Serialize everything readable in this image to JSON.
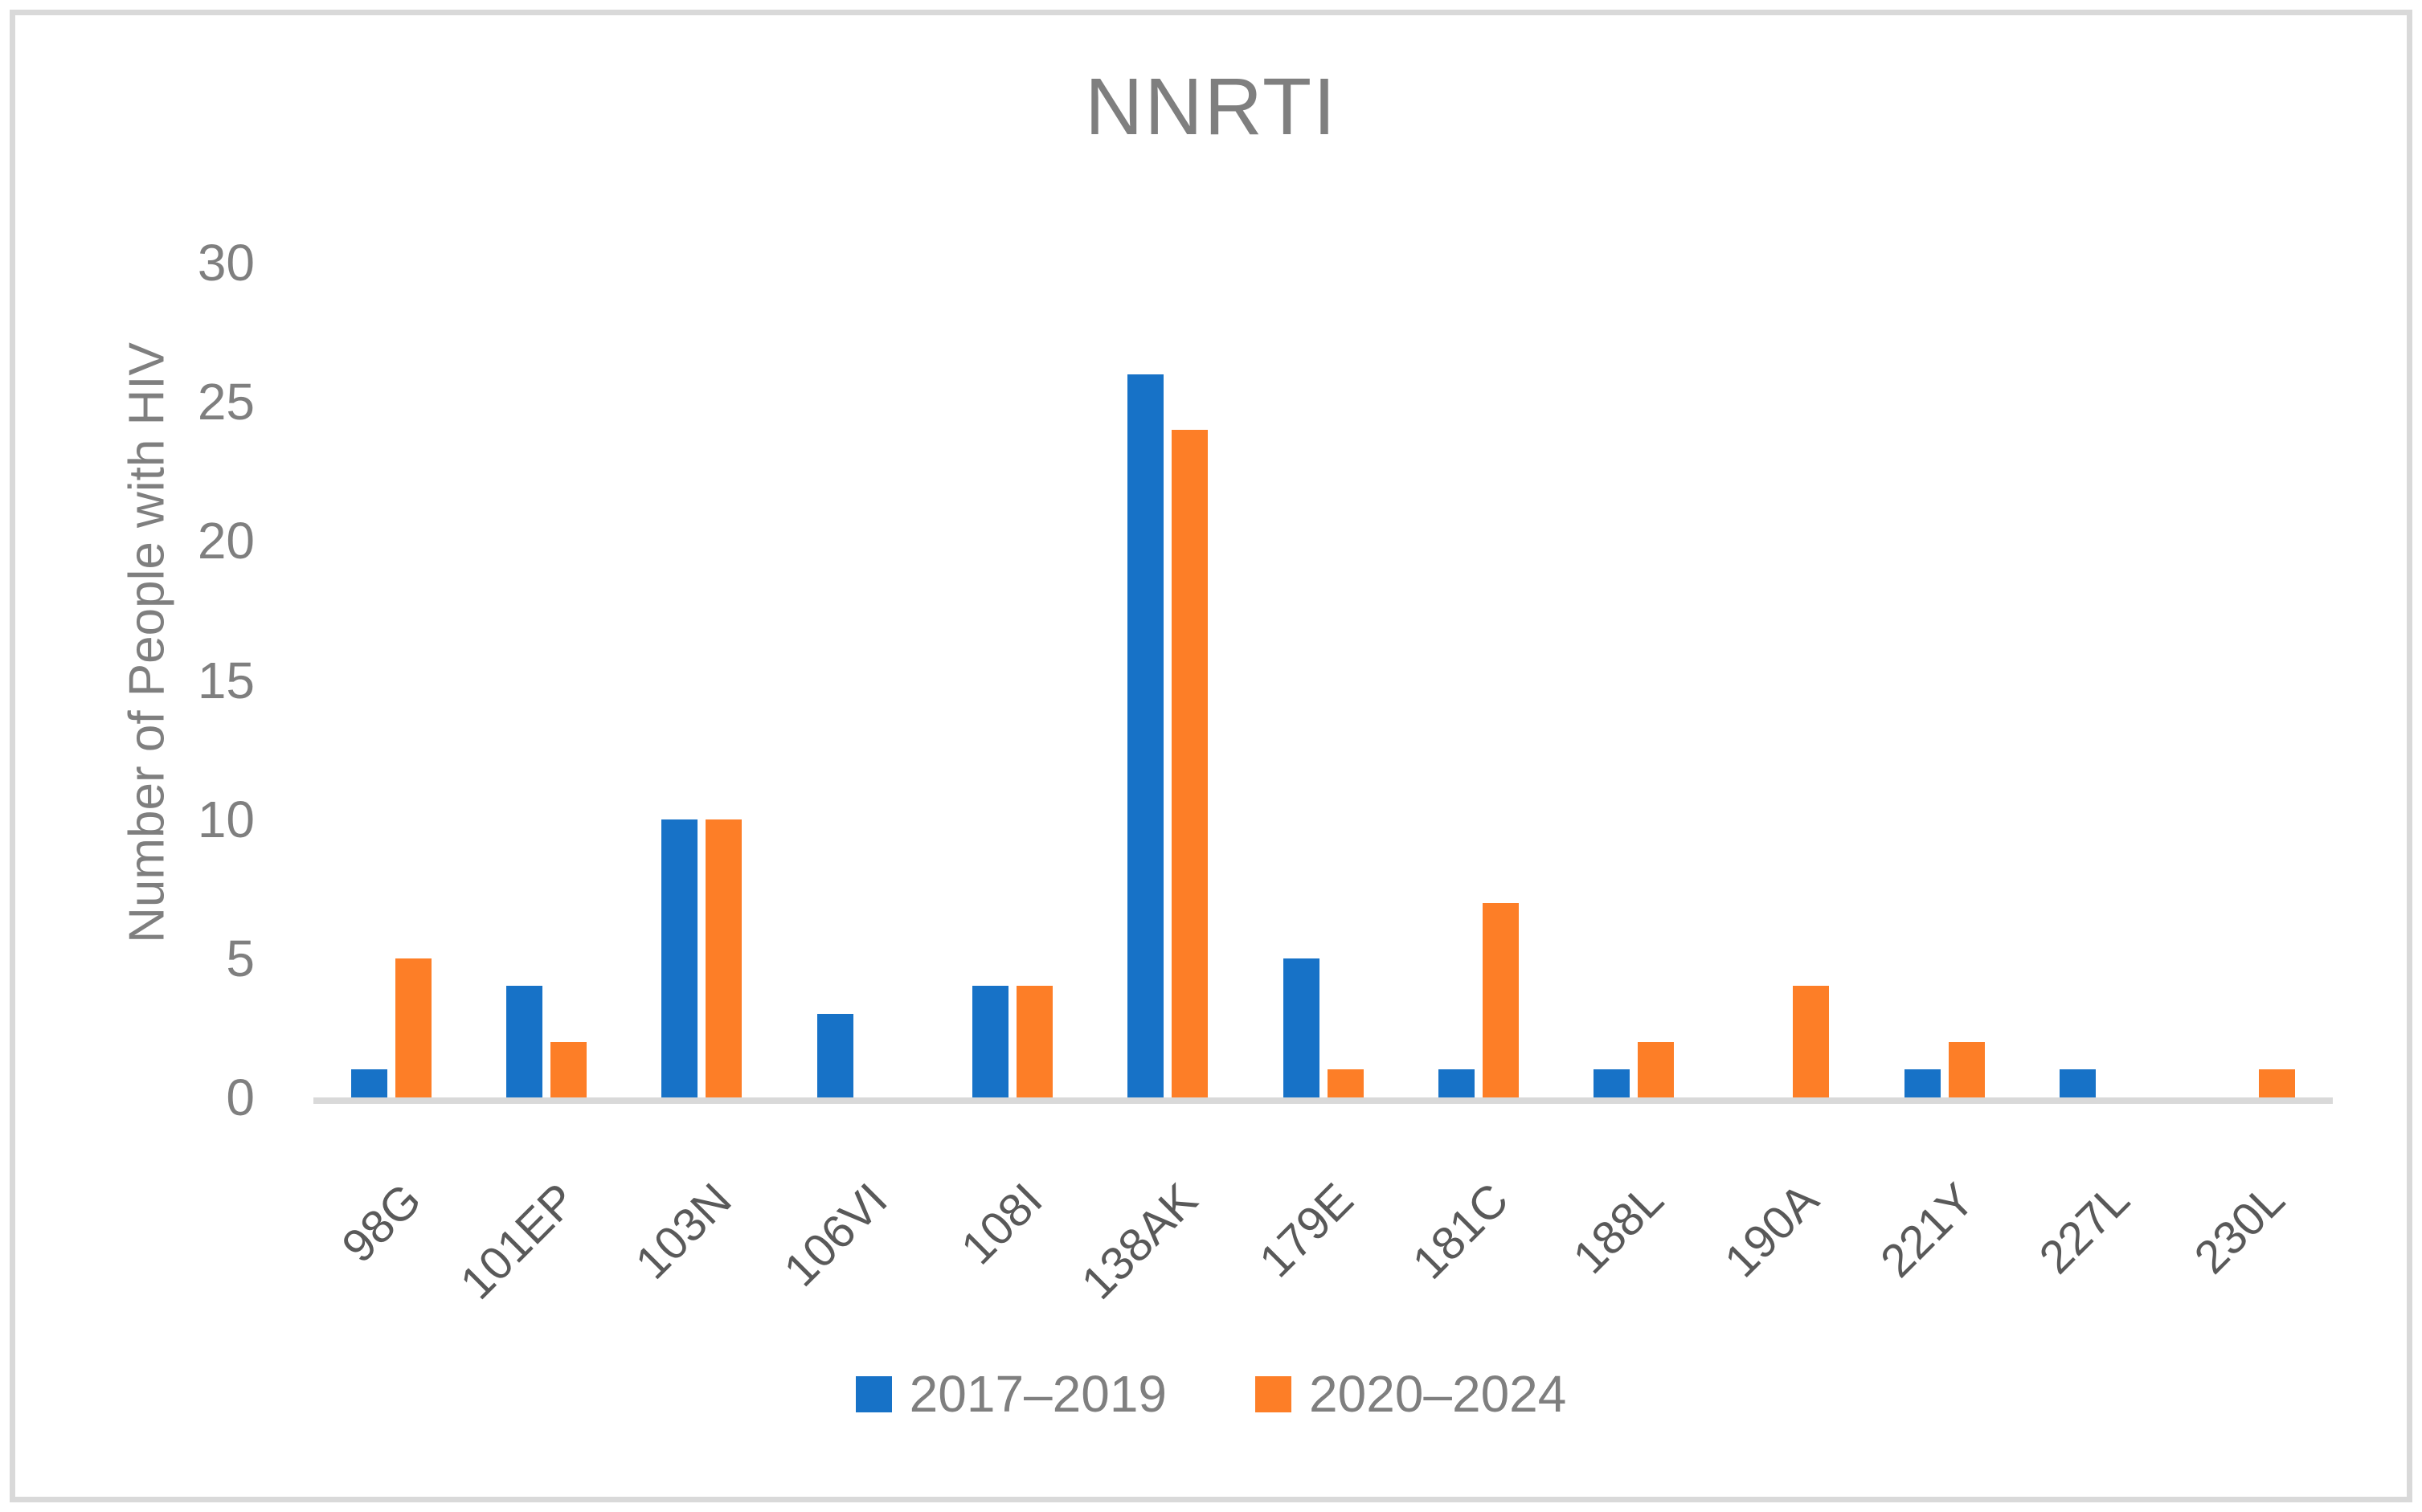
{
  "chart": {
    "title": "NNRTI",
    "ylabel": "Number of People with HIV"
  },
  "chart_data": {
    "type": "bar",
    "title": "NNRTI",
    "xlabel": "",
    "ylabel": "Number of People with HIV",
    "categories": [
      "98G",
      "101EP",
      "103N",
      "106VI",
      "108I",
      "138AK",
      "179E",
      "181C",
      "188L",
      "190A",
      "221Y",
      "227L",
      "230L"
    ],
    "series": [
      {
        "name": "2017–2019",
        "color": "#1772C7",
        "values": [
          1,
          4,
          10,
          3,
          4,
          26,
          5,
          1,
          1,
          0,
          1,
          1,
          0
        ]
      },
      {
        "name": "2020–2024",
        "color": "#FD7E27",
        "values": [
          5,
          2,
          10,
          0,
          4,
          24,
          1,
          7,
          2,
          4,
          2,
          0,
          1
        ]
      }
    ],
    "y_ticks": [
      0,
      5,
      10,
      15,
      20,
      25,
      30
    ],
    "ylim": [
      0,
      30
    ],
    "grid": false,
    "legend_position": "bottom",
    "colors": {
      "axis_line": "#D9D9D9",
      "frame_border": "#D9D9D9",
      "title_text": "#7F7F7F",
      "tick_text": "#7F7F7F",
      "xlabel_text": "#595959",
      "background": "#FFFFFF"
    }
  }
}
